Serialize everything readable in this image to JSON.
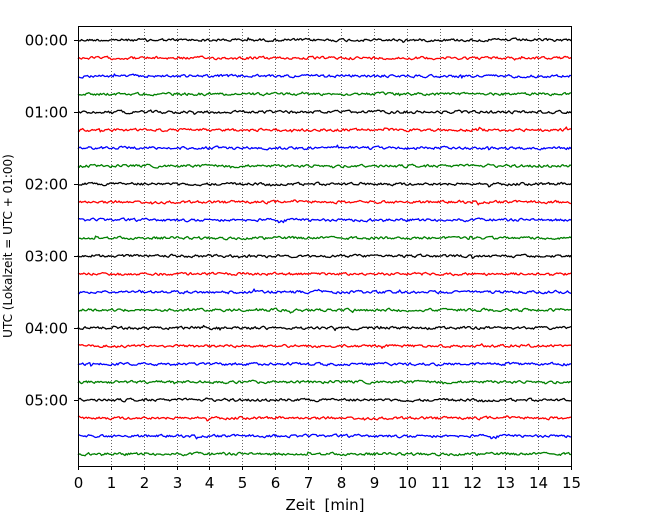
{
  "chart_data": {
    "type": "line",
    "title": "",
    "xlabel": "Zeit  [min]",
    "ylabel": "UTC (Lokalzeit = UTC + 01:00)",
    "xlim": [
      0,
      15
    ],
    "x_ticks": [
      "0",
      "1",
      "2",
      "3",
      "4",
      "5",
      "6",
      "7",
      "8",
      "9",
      "10",
      "11",
      "12",
      "13",
      "14",
      "15"
    ],
    "y_ticks": [
      "00:00",
      "01:00",
      "02:00",
      "03:00",
      "04:00",
      "05:00"
    ],
    "grid": "vertical dotted at each minute",
    "trace_colors": [
      "#000000",
      "#ff0000",
      "#0000ff",
      "#008000"
    ],
    "traces": [
      {
        "start": "00:00",
        "color": "#000000"
      },
      {
        "start": "00:15",
        "color": "#ff0000"
      },
      {
        "start": "00:30",
        "color": "#0000ff"
      },
      {
        "start": "00:45",
        "color": "#008000"
      },
      {
        "start": "01:00",
        "color": "#000000"
      },
      {
        "start": "01:15",
        "color": "#ff0000"
      },
      {
        "start": "01:30",
        "color": "#0000ff"
      },
      {
        "start": "01:45",
        "color": "#008000"
      },
      {
        "start": "02:00",
        "color": "#000000"
      },
      {
        "start": "02:15",
        "color": "#ff0000"
      },
      {
        "start": "02:30",
        "color": "#0000ff"
      },
      {
        "start": "02:45",
        "color": "#008000"
      },
      {
        "start": "03:00",
        "color": "#000000"
      },
      {
        "start": "03:15",
        "color": "#ff0000"
      },
      {
        "start": "03:30",
        "color": "#0000ff"
      },
      {
        "start": "03:45",
        "color": "#008000"
      },
      {
        "start": "04:00",
        "color": "#000000"
      },
      {
        "start": "04:15",
        "color": "#ff0000"
      },
      {
        "start": "04:30",
        "color": "#0000ff"
      },
      {
        "start": "04:45",
        "color": "#008000"
      },
      {
        "start": "05:00",
        "color": "#000000"
      },
      {
        "start": "05:15",
        "color": "#ff0000"
      },
      {
        "start": "05:30",
        "color": "#0000ff"
      },
      {
        "start": "05:45",
        "color": "#008000"
      }
    ]
  }
}
